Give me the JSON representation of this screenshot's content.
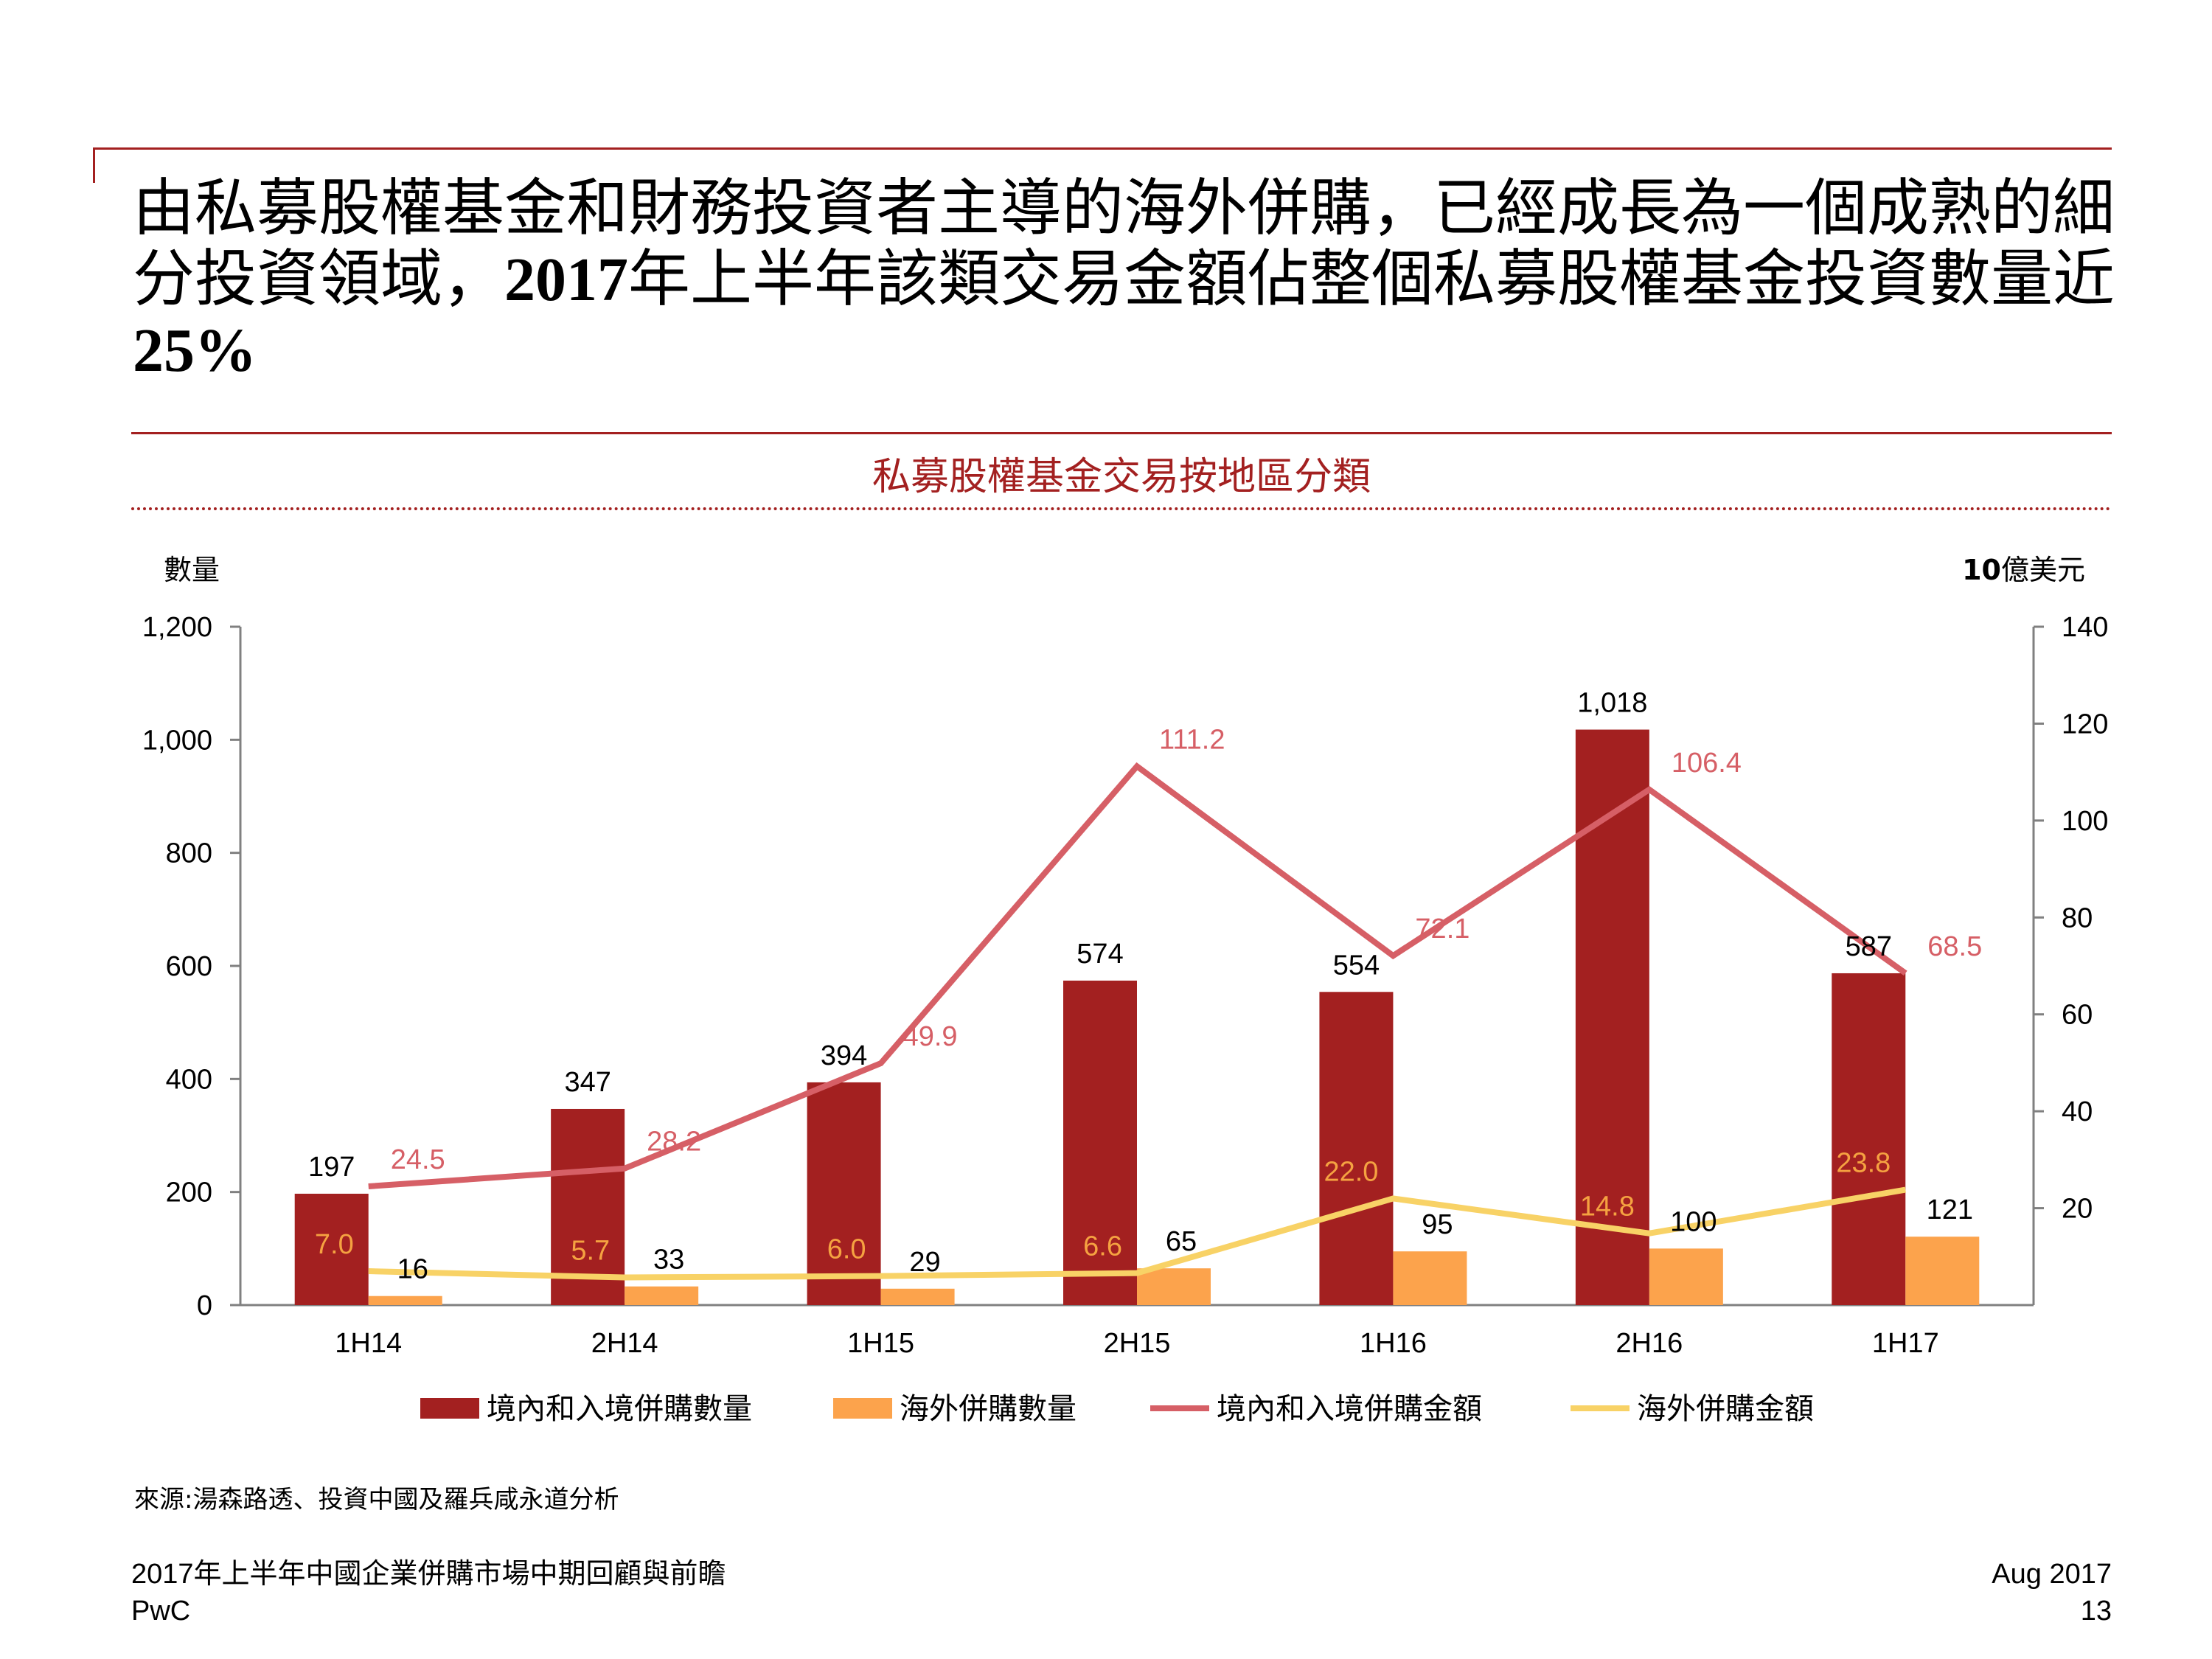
{
  "headline": {
    "part1": "由私募股權基金和財務投資者主導的海外併購，已經成長為一個成熟的細分投資領域，",
    "year": "2017",
    "part2": "年上半年該類交易金額佔整個私募股權基金投資數量近",
    "percent": "25%"
  },
  "chart_data": {
    "type": "bar",
    "title": "私募股權基金交易按地區分類",
    "categories": [
      "1H14",
      "2H14",
      "1H15",
      "2H15",
      "1H16",
      "2H16",
      "1H17"
    ],
    "left_axis": {
      "label": "數量",
      "min": 0,
      "max": 1200,
      "ticks": [
        "0",
        "200",
        "400",
        "600",
        "800",
        "1,000",
        "1,200"
      ]
    },
    "right_axis": {
      "label_bold": "10",
      "label_rest": "億美元",
      "min": 0,
      "max": 140,
      "ticks": [
        "20",
        "40",
        "60",
        "80",
        "100",
        "120",
        "140"
      ]
    },
    "series": [
      {
        "name": "境內和入境併購數量",
        "type": "bar",
        "axis": "left",
        "color": "#a32020",
        "label_color": "#000000",
        "values": [
          197,
          347,
          394,
          574,
          554,
          1018,
          587
        ],
        "labels": [
          "197",
          "347",
          "394",
          "574",
          "554",
          "1,018",
          "587"
        ]
      },
      {
        "name": "海外併購數量",
        "type": "bar",
        "axis": "left",
        "color": "#fca34c",
        "label_color": "#000000",
        "values": [
          16,
          33,
          29,
          65,
          95,
          100,
          121
        ],
        "labels": [
          "16",
          "33",
          "29",
          "65",
          "95",
          "100",
          "121"
        ]
      },
      {
        "name": "境內和入境併購金額",
        "type": "line",
        "axis": "right",
        "color": "#d65f66",
        "label_color": "#d65f66",
        "values": [
          24.5,
          28.2,
          49.9,
          111.2,
          72.1,
          106.4,
          68.5
        ],
        "labels": [
          "24.5",
          "28.2",
          "49.9",
          "111.2",
          "72.1",
          "106.4",
          "68.5"
        ]
      },
      {
        "name": "海外併購金額",
        "type": "line",
        "axis": "right",
        "color": "#f8d266",
        "label_color": "#f5a241",
        "values": [
          7.0,
          5.7,
          6.0,
          6.6,
          22.0,
          14.8,
          23.8
        ],
        "labels": [
          "7.0",
          "5.7",
          "6.0",
          "6.6",
          "22.0",
          "14.8",
          "23.8"
        ]
      }
    ]
  },
  "source": "來源:湯森路透、投資中國及羅兵咸永道分析",
  "footer": {
    "report_title": "2017年上半年中國企業併購市場中期回顧與前瞻",
    "company": "PwC",
    "date": "Aug 2017",
    "page_number": "13"
  }
}
